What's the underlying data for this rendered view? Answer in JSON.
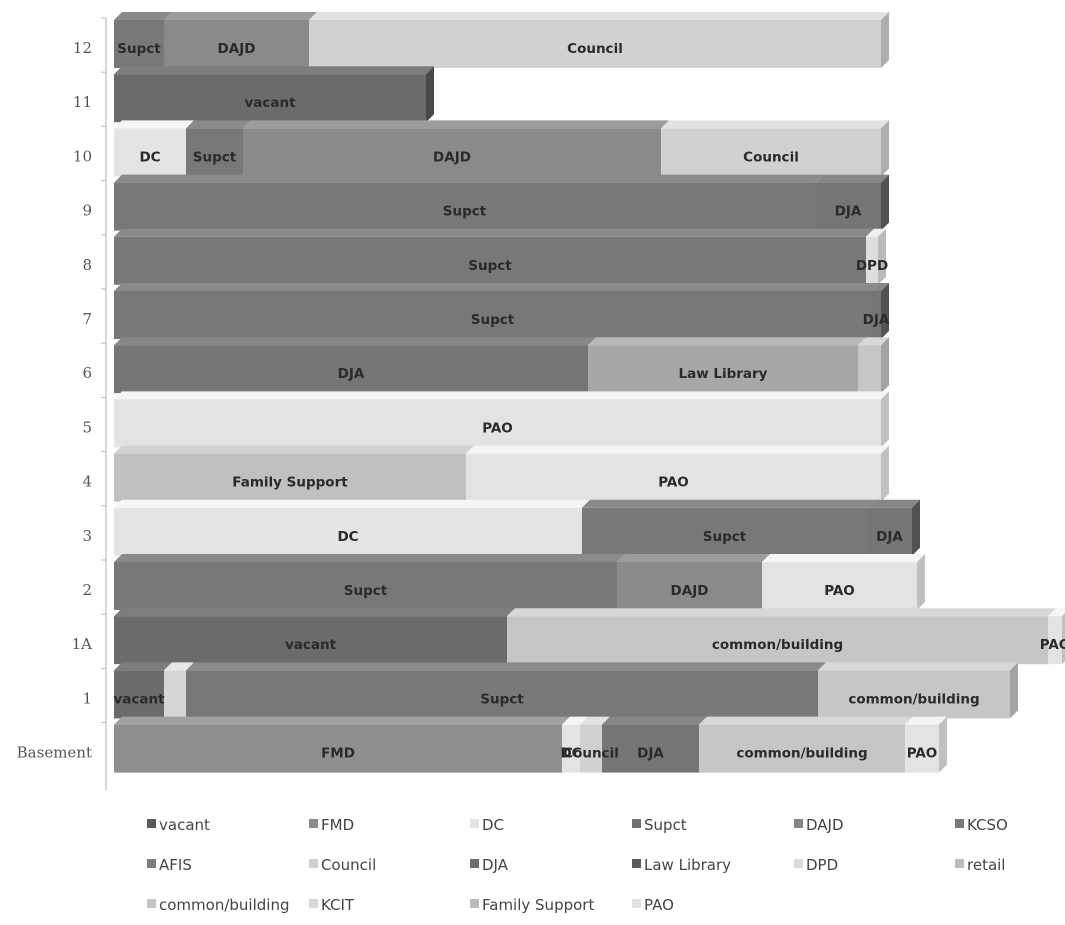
{
  "chart_data": {
    "type": "bar",
    "orientation": "horizontal-stacked",
    "x_unit": "relative floor area (chart units)",
    "categories": [
      "12",
      "11",
      "10",
      "9",
      "8",
      "7",
      "6",
      "5",
      "4",
      "3",
      "2",
      "1A",
      "1",
      "Basement"
    ],
    "floors": [
      {
        "floor": "12",
        "segments": [
          {
            "tenant": "Supct",
            "value": 50,
            "label": "Supct"
          },
          {
            "tenant": "DAJD",
            "value": 145,
            "label": "DAJD"
          },
          {
            "tenant": "Council",
            "value": 572,
            "label": "Council"
          }
        ]
      },
      {
        "floor": "11",
        "segments": [
          {
            "tenant": "vacant",
            "value": 312,
            "label": "vacant"
          }
        ]
      },
      {
        "floor": "10",
        "segments": [
          {
            "tenant": "DC",
            "value": 72,
            "label": "DC"
          },
          {
            "tenant": "Supct",
            "value": 57,
            "label": "Supct"
          },
          {
            "tenant": "DAJD",
            "value": 418,
            "label": "DAJD"
          },
          {
            "tenant": "Council",
            "value": 220,
            "label": "Council"
          }
        ]
      },
      {
        "floor": "9",
        "segments": [
          {
            "tenant": "Supct",
            "value": 701,
            "label": "Supct"
          },
          {
            "tenant": "DJA",
            "value": 66,
            "label": "DJA"
          }
        ]
      },
      {
        "floor": "8",
        "segments": [
          {
            "tenant": "Supct",
            "value": 752,
            "label": "Supct"
          },
          {
            "tenant": "DPD",
            "value": 12,
            "label": "DPD"
          }
        ]
      },
      {
        "floor": "7",
        "segments": [
          {
            "tenant": "Supct",
            "value": 757,
            "label": "Supct"
          },
          {
            "tenant": "DJA",
            "value": 10,
            "label": "DJA"
          }
        ]
      },
      {
        "floor": "6",
        "segments": [
          {
            "tenant": "DJA",
            "value": 474,
            "label": "DJA"
          },
          {
            "tenant": "Law Library",
            "value": 270,
            "label": "Law Library"
          },
          {
            "tenant": "common/building",
            "value": 23,
            "label": ""
          }
        ]
      },
      {
        "floor": "5",
        "segments": [
          {
            "tenant": "PAO",
            "value": 767,
            "label": "PAO"
          }
        ]
      },
      {
        "floor": "4",
        "segments": [
          {
            "tenant": "Family Support",
            "value": 352,
            "label": "Family Support"
          },
          {
            "tenant": "PAO",
            "value": 415,
            "label": "PAO"
          }
        ]
      },
      {
        "floor": "3",
        "segments": [
          {
            "tenant": "DC",
            "value": 468,
            "label": "DC"
          },
          {
            "tenant": "Supct",
            "value": 285,
            "label": "Supct"
          },
          {
            "tenant": "DJA",
            "value": 45,
            "label": "DJA"
          }
        ]
      },
      {
        "floor": "2",
        "segments": [
          {
            "tenant": "Supct",
            "value": 503,
            "label": "Supct"
          },
          {
            "tenant": "DAJD",
            "value": 145,
            "label": "DAJD"
          },
          {
            "tenant": "PAO",
            "value": 155,
            "label": "PAO"
          }
        ]
      },
      {
        "floor": "1A",
        "segments": [
          {
            "tenant": "vacant",
            "value": 393,
            "label": "vacant"
          },
          {
            "tenant": "common/building",
            "value": 541,
            "label": "common/building"
          },
          {
            "tenant": "PAO",
            "value": 14,
            "label": "PAO"
          }
        ]
      },
      {
        "floor": "1",
        "segments": [
          {
            "tenant": "vacant",
            "value": 50,
            "label": "vacant"
          },
          {
            "tenant": "KCIT",
            "value": 22,
            "label": ""
          },
          {
            "tenant": "Supct",
            "value": 632,
            "label": "Supct"
          },
          {
            "tenant": "common/building",
            "value": 192,
            "label": "common/building"
          }
        ]
      },
      {
        "floor": "Basement",
        "segments": [
          {
            "tenant": "FMD",
            "value": 448,
            "label": "FMD"
          },
          {
            "tenant": "DC",
            "value": 18,
            "label": "DC"
          },
          {
            "tenant": "Council",
            "value": 22,
            "label": "Council"
          },
          {
            "tenant": "DJA",
            "value": 97,
            "label": "DJA"
          },
          {
            "tenant": "common/building",
            "value": 206,
            "label": "common/building"
          },
          {
            "tenant": "PAO",
            "value": 34,
            "label": "PAO"
          }
        ]
      }
    ],
    "legend": [
      {
        "name": "vacant",
        "color": "#5b5b5b"
      },
      {
        "name": "FMD",
        "color": "#8b8b8b"
      },
      {
        "name": "DC",
        "color": "#e3e3e3"
      },
      {
        "name": "Supct",
        "color": "#707070"
      },
      {
        "name": "DAJD",
        "color": "#858585"
      },
      {
        "name": "KCSO",
        "color": "#7a7a7a"
      },
      {
        "name": "AFIS",
        "color": "#7d7d7d"
      },
      {
        "name": "Council",
        "color": "#cfcfcf"
      },
      {
        "name": "DJA",
        "color": "#6e6e6e"
      },
      {
        "name": "Law Library",
        "color": "#5a5a5a"
      },
      {
        "name": "DPD",
        "color": "#dadada"
      },
      {
        "name": "retail",
        "color": "#bdbdbd"
      },
      {
        "name": "common/building",
        "color": "#c4c4c4"
      },
      {
        "name": "KCIT",
        "color": "#d8d8d8"
      },
      {
        "name": "Family Support",
        "color": "#bababa"
      },
      {
        "name": "PAO",
        "color": "#e1e1e1"
      }
    ],
    "segment_colors": {
      "vacant": "#6b6b6b",
      "FMD": "#8f8f8f",
      "DC": "#e4e4e4",
      "Supct": "#787878",
      "DAJD": "#8a8a8a",
      "Council": "#d1d1d1",
      "DJA": "#757575",
      "Law Library": "#a7a7a7",
      "DPD": "#dedede",
      "common/building": "#c6c6c6",
      "KCIT": "#d6d6d6",
      "Family Support": "#c0c0c0",
      "PAO": "#e3e3e3"
    },
    "xlabel": "",
    "ylabel": "",
    "title": "",
    "grid": false,
    "legend_position": "bottom"
  }
}
